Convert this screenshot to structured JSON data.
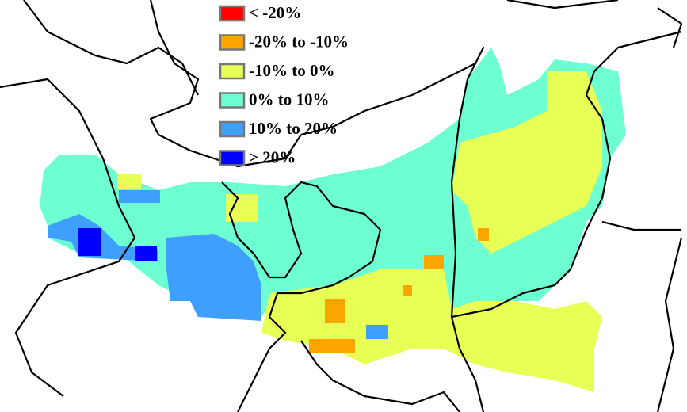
{
  "legend": {
    "items": [
      {
        "label": "< -20%",
        "color": "#ff0000"
      },
      {
        "label": "-20% to -10%",
        "color": "#ffa500"
      },
      {
        "label": "-10% to 0%",
        "color": "#e8ff55"
      },
      {
        "label": "0% to 10%",
        "color": "#6dffd2"
      },
      {
        "label": "10% to 20%",
        "color": "#3f9fff"
      },
      {
        "label": "> 20%",
        "color": "#0000ff"
      }
    ]
  }
}
